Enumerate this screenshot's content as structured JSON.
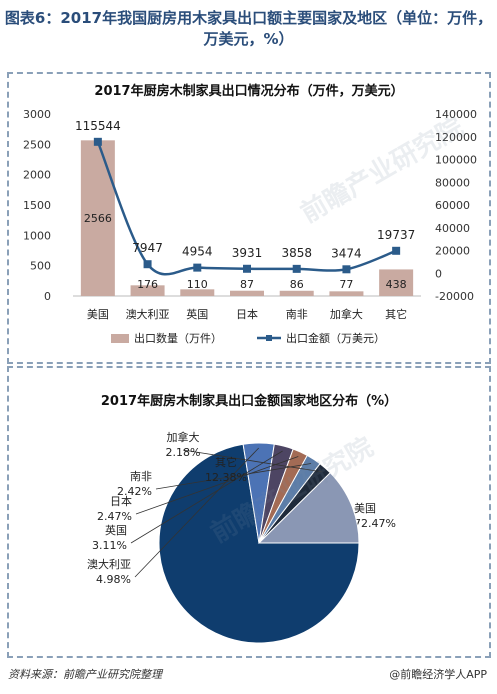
{
  "figure_title": "图表6：2017年我国厨房用木家具出口额主要国家及地区（单位：万件，万美元，%）",
  "source_text": "资料来源：前瞻产业研究院整理",
  "brand_text": "@前瞻经济学人APP",
  "watermark_text": "前瞻产业研究院",
  "colors": {
    "bar": "#c9aaa1",
    "line": "#2b5b8a",
    "title": "#2a4d7a",
    "pie": [
      "#0f3d6e",
      "#4c73b5",
      "#4d4563",
      "#a36b55",
      "#5c7da8",
      "#1f2a3a",
      "#8a97b4"
    ]
  },
  "chart_data": [
    {
      "type": "bar",
      "title": "2017年厨房木制家具出口情况分布（万件，万美元）",
      "categories": [
        "美国",
        "澳大利亚",
        "英国",
        "日本",
        "南非",
        "加拿大",
        "其它"
      ],
      "ylim": [
        0,
        3000
      ],
      "y_ticks": [
        0,
        500,
        1000,
        1500,
        2000,
        2500,
        3000
      ],
      "y2lim": [
        -20000,
        140000
      ],
      "y2_ticks": [
        -20000,
        0,
        20000,
        40000,
        60000,
        80000,
        100000,
        120000,
        140000
      ],
      "series": [
        {
          "name": "出口数量（万件）",
          "type": "bar",
          "axis": "left",
          "values": [
            2566,
            176,
            110,
            87,
            86,
            77,
            438
          ]
        },
        {
          "name": "出口金额（万美元）",
          "type": "line",
          "axis": "right",
          "values": [
            115544,
            7947,
            4954,
            3931,
            3858,
            3474,
            19737
          ]
        }
      ],
      "legend": "bottom"
    },
    {
      "type": "pie",
      "title": "2017年厨房木制家具出口金额国家地区分布（%）",
      "labels": [
        "美国",
        "澳大利亚",
        "英国",
        "日本",
        "南非",
        "加拿大",
        "其它"
      ],
      "values": [
        72.47,
        4.98,
        3.11,
        2.47,
        2.42,
        2.18,
        12.38
      ],
      "value_labels": [
        "72.47%",
        "4.98%",
        "3.11%",
        "2.47%",
        "2.42%",
        "2.18%",
        "12.38%"
      ]
    }
  ]
}
